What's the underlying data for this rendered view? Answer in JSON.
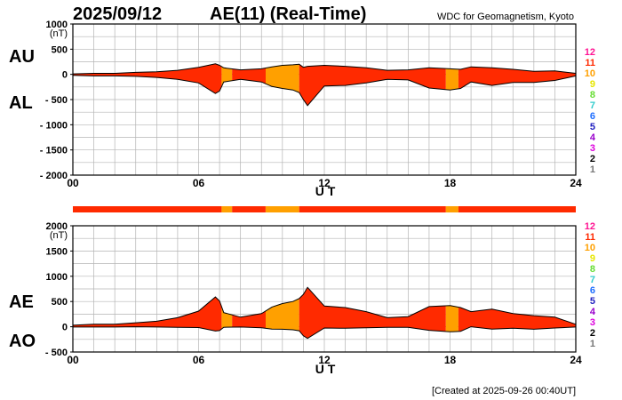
{
  "header": {
    "date": "2025/09/12",
    "title": "AE(11) (Real-Time)",
    "source": "WDC for Geomagnetism, Kyoto"
  },
  "footer": {
    "created": "[Created at 2025-09-26 00:40UT]"
  },
  "colors": {
    "level_11": "#ff2a00",
    "level_10": "#ffa000",
    "level_scale": [
      "#ff1493",
      "#ff2a00",
      "#ffa000",
      "#e6e600",
      "#66dd33",
      "#33cccc",
      "#1e6eff",
      "#2020c0",
      "#9900cc",
      "#dd00dd",
      "#000000",
      "#777777",
      "#cccccc"
    ]
  },
  "level_legend": [
    "12",
    "11",
    "10",
    "9",
    "8",
    "7",
    "6",
    "5",
    "4",
    "3",
    "2",
    "1"
  ],
  "chart_data": [
    {
      "type": "area",
      "panel": "AU/AL",
      "labels": [
        "AU",
        "AL"
      ],
      "unit": "(nT)",
      "xlabel": "U T",
      "xlim": [
        0,
        24
      ],
      "ylim": [
        -2000,
        1000
      ],
      "y_ticks": [
        "1000",
        "500",
        "0",
        "- 500",
        "- 1000",
        "- 1500",
        "- 2000"
      ],
      "x_ticks": [
        "00",
        "06",
        "12",
        "18",
        "24"
      ],
      "grid": true,
      "series": [
        {
          "name": "AU",
          "x": [
            0,
            1,
            2,
            3,
            4,
            5,
            6,
            6.8,
            7,
            7.2,
            8,
            9,
            9.5,
            10,
            10.5,
            10.8,
            11,
            11.2,
            12,
            13,
            14,
            15,
            16,
            17,
            18,
            18.5,
            19,
            20,
            21,
            22,
            23,
            24
          ],
          "values": [
            10,
            20,
            20,
            40,
            50,
            80,
            140,
            210,
            180,
            130,
            90,
            110,
            150,
            180,
            190,
            200,
            140,
            160,
            180,
            160,
            130,
            80,
            90,
            130,
            110,
            100,
            150,
            130,
            100,
            60,
            70,
            20
          ]
        },
        {
          "name": "AL",
          "x": [
            0,
            1,
            2,
            3,
            4,
            5,
            6,
            6.8,
            7,
            7.2,
            8,
            9,
            9.5,
            10,
            10.5,
            10.8,
            11,
            11.2,
            12,
            13,
            14,
            15,
            16,
            17,
            18,
            18.5,
            19,
            20,
            21,
            22,
            23,
            24
          ],
          "values": [
            -20,
            -30,
            -30,
            -40,
            -60,
            -100,
            -170,
            -380,
            -330,
            -150,
            -100,
            -150,
            -240,
            -280,
            -310,
            -360,
            -500,
            -620,
            -230,
            -220,
            -170,
            -100,
            -110,
            -270,
            -310,
            -280,
            -150,
            -220,
            -160,
            -160,
            -120,
            -30
          ]
        }
      ],
      "activity_levels": [
        {
          "from": 0,
          "to": 7.1,
          "level": 11
        },
        {
          "from": 7.1,
          "to": 7.6,
          "level": 10
        },
        {
          "from": 7.6,
          "to": 9.2,
          "level": 11
        },
        {
          "from": 9.2,
          "to": 10.8,
          "level": 10
        },
        {
          "from": 10.8,
          "to": 17.8,
          "level": 11
        },
        {
          "from": 17.8,
          "to": 18.4,
          "level": 10
        },
        {
          "from": 18.4,
          "to": 24,
          "level": 11
        }
      ]
    },
    {
      "type": "area",
      "panel": "AE/AO",
      "labels": [
        "AE",
        "AO"
      ],
      "unit": "(nT)",
      "xlabel": "U T",
      "xlim": [
        0,
        24
      ],
      "ylim": [
        -500,
        2000
      ],
      "y_ticks": [
        "2000",
        "1500",
        "1000",
        "500",
        "0",
        "- 500"
      ],
      "x_ticks": [
        "00",
        "06",
        "12",
        "18",
        "24"
      ],
      "grid": true,
      "series": [
        {
          "name": "AE",
          "x": [
            0,
            1,
            2,
            3,
            4,
            5,
            6,
            6.8,
            7,
            7.2,
            8,
            9,
            9.5,
            10,
            10.5,
            10.8,
            11,
            11.2,
            12,
            13,
            14,
            15,
            16,
            17,
            18,
            18.5,
            19,
            20,
            21,
            22,
            23,
            24
          ],
          "values": [
            30,
            50,
            50,
            80,
            110,
            180,
            310,
            590,
            510,
            280,
            190,
            260,
            390,
            460,
            500,
            560,
            640,
            780,
            410,
            380,
            300,
            180,
            200,
            400,
            420,
            380,
            300,
            350,
            260,
            220,
            190,
            50
          ]
        },
        {
          "name": "AO",
          "x": [
            0,
            1,
            2,
            3,
            4,
            5,
            6,
            6.8,
            7,
            7.2,
            8,
            9,
            9.5,
            10,
            10.5,
            10.8,
            11,
            11.2,
            12,
            13,
            14,
            15,
            16,
            17,
            18,
            18.5,
            19,
            20,
            21,
            22,
            23,
            24
          ],
          "values": [
            -5,
            -5,
            -5,
            0,
            -5,
            -10,
            -15,
            -85,
            -75,
            -10,
            -5,
            -20,
            -45,
            -50,
            -60,
            -80,
            -180,
            -230,
            -25,
            -30,
            -20,
            -10,
            -10,
            -70,
            -100,
            -90,
            0,
            -45,
            -30,
            -50,
            -25,
            -5
          ]
        }
      ],
      "activity_levels": [
        {
          "from": 0,
          "to": 7.1,
          "level": 11
        },
        {
          "from": 7.1,
          "to": 7.6,
          "level": 10
        },
        {
          "from": 7.6,
          "to": 9.2,
          "level": 11
        },
        {
          "from": 9.2,
          "to": 10.8,
          "level": 10
        },
        {
          "from": 10.8,
          "to": 17.8,
          "level": 11
        },
        {
          "from": 17.8,
          "to": 18.4,
          "level": 10
        },
        {
          "from": 18.4,
          "to": 24,
          "level": 11
        }
      ]
    }
  ]
}
